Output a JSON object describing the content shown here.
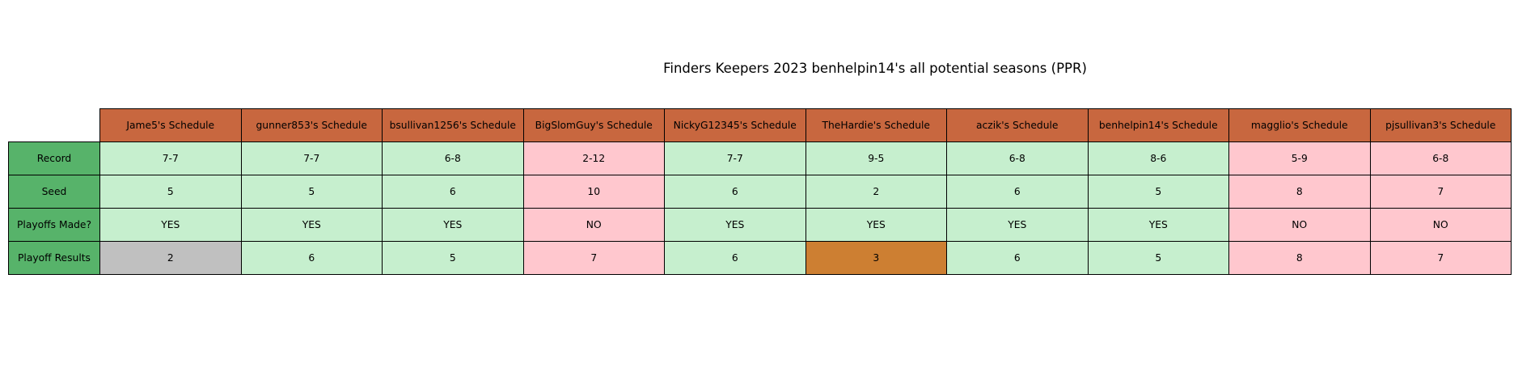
{
  "chart_data": {
    "type": "table",
    "title": "Finders Keepers 2023 benhelpin14's all potential seasons (PPR)",
    "columns": [
      "Jame5's Schedule",
      "gunner853's Schedule",
      "bsullivan1256's Schedule",
      "BigSlomGuy's Schedule",
      "NickyG12345's Schedule",
      "TheHardie's Schedule",
      "aczik's Schedule",
      "benhelpin14's Schedule",
      "magglio's Schedule",
      "pjsullivan3's Schedule"
    ],
    "rows": [
      {
        "label": "Record",
        "values": [
          "7-7",
          "7-7",
          "6-8",
          "2-12",
          "7-7",
          "9-5",
          "6-8",
          "8-6",
          "5-9",
          "6-8"
        ],
        "colors": [
          "green",
          "green",
          "green",
          "red",
          "green",
          "green",
          "green",
          "green",
          "red",
          "red"
        ]
      },
      {
        "label": "Seed",
        "values": [
          "5",
          "5",
          "6",
          "10",
          "6",
          "2",
          "6",
          "5",
          "8",
          "7"
        ],
        "colors": [
          "green",
          "green",
          "green",
          "red",
          "green",
          "green",
          "green",
          "green",
          "red",
          "red"
        ]
      },
      {
        "label": "Playoffs Made?",
        "values": [
          "YES",
          "YES",
          "YES",
          "NO",
          "YES",
          "YES",
          "YES",
          "YES",
          "NO",
          "NO"
        ],
        "colors": [
          "green",
          "green",
          "green",
          "red",
          "green",
          "green",
          "green",
          "green",
          "red",
          "red"
        ]
      },
      {
        "label": "Playoff Results",
        "values": [
          "2",
          "6",
          "5",
          "7",
          "6",
          "3",
          "6",
          "5",
          "8",
          "7"
        ],
        "colors": [
          "silver",
          "green",
          "green",
          "red",
          "green",
          "bronze",
          "green",
          "green",
          "red",
          "red"
        ]
      }
    ],
    "palette": {
      "column_header": "#C8673F",
      "row_header": "#57B36A",
      "green": "#C6EFCE",
      "red": "#FFC7CE",
      "silver": "#C0C0C0",
      "bronze": "#CD7F32",
      "border": "#000000"
    }
  }
}
